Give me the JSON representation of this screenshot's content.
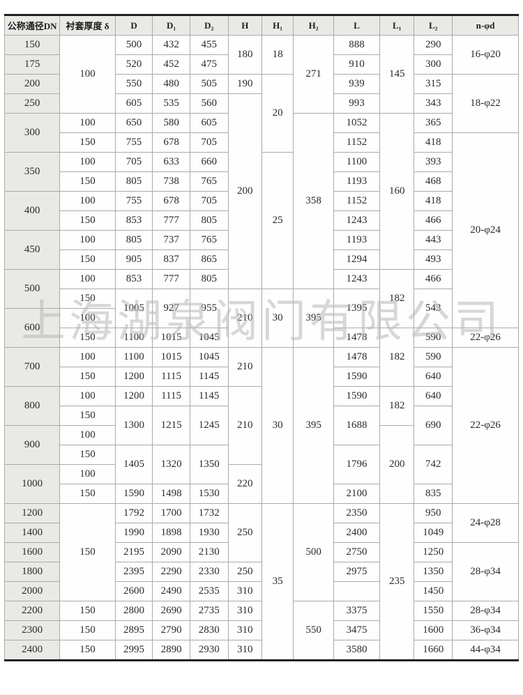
{
  "watermark": "上海湖泉阀门有限公司",
  "table": {
    "columns": [
      "公称通径DN",
      "衬套厚度 δ",
      "D",
      "D₁",
      "D₂",
      "H",
      "H₁",
      "H₂",
      "L",
      "L₁",
      "L₂",
      "n-φd"
    ],
    "rows": [
      [
        [
          "150",
          1
        ],
        [
          "100",
          4
        ],
        [
          "500",
          1
        ],
        [
          "432",
          1
        ],
        [
          "455",
          1
        ],
        [
          "180",
          2
        ],
        [
          "18",
          2
        ],
        [
          "271",
          4
        ],
        [
          "888",
          1
        ],
        [
          "145",
          4
        ],
        [
          "290",
          1
        ],
        [
          "16-φ20",
          2
        ]
      ],
      [
        [
          "175",
          1
        ],
        null,
        [
          "520",
          1
        ],
        [
          "452",
          1
        ],
        [
          "475",
          1
        ],
        null,
        null,
        null,
        [
          "910",
          1
        ],
        null,
        [
          "300",
          1
        ],
        null
      ],
      [
        [
          "200",
          1
        ],
        null,
        [
          "550",
          1
        ],
        [
          "480",
          1
        ],
        [
          "505",
          1
        ],
        [
          "190",
          1
        ],
        [
          "20",
          4
        ],
        null,
        [
          "939",
          1
        ],
        null,
        [
          "315",
          1
        ],
        [
          "18-φ22",
          3
        ]
      ],
      [
        [
          "250",
          1
        ],
        null,
        [
          "605",
          1
        ],
        [
          "535",
          1
        ],
        [
          "560",
          1
        ],
        [
          "200",
          10
        ],
        null,
        null,
        [
          "993",
          1
        ],
        null,
        [
          "343",
          1
        ],
        null
      ],
      [
        [
          "300",
          2
        ],
        [
          "100",
          1
        ],
        [
          "650",
          1
        ],
        [
          "580",
          1
        ],
        [
          "605",
          1
        ],
        null,
        null,
        [
          "358",
          9
        ],
        [
          "1052",
          1
        ],
        [
          "160",
          8
        ],
        [
          "365",
          1
        ],
        null
      ],
      [
        null,
        [
          "150",
          1
        ],
        [
          "755",
          1
        ],
        [
          "678",
          1
        ],
        [
          "705",
          1
        ],
        null,
        null,
        null,
        [
          "1152",
          1
        ],
        null,
        [
          "418",
          1
        ],
        [
          "20-φ24",
          10
        ]
      ],
      [
        [
          "350",
          2
        ],
        [
          "100",
          1
        ],
        [
          "705",
          1
        ],
        [
          "633",
          1
        ],
        [
          "660",
          1
        ],
        null,
        [
          "25",
          7
        ],
        null,
        [
          "1100",
          1
        ],
        null,
        [
          "393",
          1
        ],
        null
      ],
      [
        null,
        [
          "150",
          1
        ],
        [
          "805",
          1
        ],
        [
          "738",
          1
        ],
        [
          "765",
          1
        ],
        null,
        null,
        null,
        [
          "1193",
          1
        ],
        null,
        [
          "468",
          1
        ],
        null
      ],
      [
        [
          "400",
          2
        ],
        [
          "100",
          1
        ],
        [
          "755",
          1
        ],
        [
          "678",
          1
        ],
        [
          "705",
          1
        ],
        null,
        null,
        null,
        [
          "1152",
          1
        ],
        null,
        [
          "418",
          1
        ],
        null
      ],
      [
        null,
        [
          "150",
          1
        ],
        [
          "853",
          1
        ],
        [
          "777",
          1
        ],
        [
          "805",
          1
        ],
        null,
        null,
        null,
        [
          "1243",
          1
        ],
        null,
        [
          "466",
          1
        ],
        null
      ],
      [
        [
          "450",
          2
        ],
        [
          "100",
          1
        ],
        [
          "805",
          1
        ],
        [
          "737",
          1
        ],
        [
          "765",
          1
        ],
        null,
        null,
        null,
        [
          "1193",
          1
        ],
        null,
        [
          "443",
          1
        ],
        null
      ],
      [
        null,
        [
          "150",
          1
        ],
        [
          "905",
          1
        ],
        [
          "837",
          1
        ],
        [
          "865",
          1
        ],
        null,
        null,
        null,
        [
          "1294",
          1
        ],
        null,
        [
          "493",
          1
        ],
        null
      ],
      [
        [
          "500",
          2
        ],
        [
          "100",
          1
        ],
        [
          "853",
          1
        ],
        [
          "777",
          1
        ],
        [
          "805",
          1
        ],
        null,
        null,
        null,
        [
          "1243",
          1
        ],
        [
          "182",
          3
        ],
        [
          "466",
          1
        ],
        null
      ],
      [
        null,
        [
          "150",
          1
        ],
        [
          "1005",
          2
        ],
        [
          "927",
          2
        ],
        [
          "955",
          2
        ],
        [
          "210",
          3
        ],
        [
          "30",
          3
        ],
        [
          "395",
          3
        ],
        [
          "1395",
          2
        ],
        null,
        [
          "543",
          2
        ],
        null
      ],
      [
        [
          "600",
          2
        ],
        [
          "100",
          1
        ],
        null,
        null,
        null,
        null,
        null,
        null,
        null,
        null,
        null,
        null
      ],
      [
        null,
        [
          "150",
          1
        ],
        [
          "1100",
          1
        ],
        [
          "1015",
          1
        ],
        [
          "1045",
          1
        ],
        null,
        null,
        null,
        [
          "1478",
          1
        ],
        [
          "182",
          3
        ],
        [
          "590",
          1
        ],
        [
          "22-φ26",
          1
        ]
      ],
      [
        [
          "700",
          2
        ],
        [
          "100",
          1
        ],
        [
          "1100",
          1
        ],
        [
          "1015",
          1
        ],
        [
          "1045",
          1
        ],
        [
          "210",
          2
        ],
        [
          "30",
          8
        ],
        [
          "395",
          8
        ],
        [
          "1478",
          1
        ],
        null,
        [
          "590",
          1
        ],
        [
          "22-φ26",
          8
        ]
      ],
      [
        null,
        [
          "150",
          1
        ],
        [
          "1200",
          1
        ],
        [
          "1115",
          1
        ],
        [
          "1145",
          1
        ],
        null,
        null,
        null,
        [
          "1590",
          1
        ],
        null,
        [
          "640",
          1
        ],
        null
      ],
      [
        [
          "800",
          2
        ],
        [
          "100",
          1
        ],
        [
          "1200",
          1
        ],
        [
          "1115",
          1
        ],
        [
          "1145",
          1
        ],
        [
          "210",
          4
        ],
        null,
        null,
        [
          "1590",
          1
        ],
        [
          "182",
          2
        ],
        [
          "640",
          1
        ],
        null
      ],
      [
        null,
        [
          "150",
          1
        ],
        [
          "1300",
          2
        ],
        [
          "1215",
          2
        ],
        [
          "1245",
          2
        ],
        null,
        null,
        null,
        [
          "1688",
          2
        ],
        null,
        [
          "690",
          2
        ],
        null
      ],
      [
        [
          "900",
          2
        ],
        [
          "100",
          1
        ],
        null,
        null,
        null,
        null,
        null,
        null,
        null,
        [
          "200",
          4
        ],
        null,
        null
      ],
      [
        null,
        [
          "150",
          1
        ],
        [
          "1405",
          2
        ],
        [
          "1320",
          2
        ],
        [
          "1350",
          2
        ],
        null,
        null,
        null,
        [
          "1796",
          2
        ],
        null,
        [
          "742",
          2
        ],
        null
      ],
      [
        [
          "1000",
          2
        ],
        [
          "100",
          1
        ],
        null,
        null,
        null,
        [
          "220",
          2
        ],
        null,
        null,
        null,
        null,
        null,
        null
      ],
      [
        null,
        [
          "150",
          1
        ],
        [
          "1590",
          1
        ],
        [
          "1498",
          1
        ],
        [
          "1530",
          1
        ],
        null,
        null,
        null,
        [
          "2100",
          1
        ],
        null,
        [
          "835",
          1
        ],
        null
      ],
      [
        [
          "1200",
          1
        ],
        [
          "150",
          5
        ],
        [
          "1792",
          1
        ],
        [
          "1700",
          1
        ],
        [
          "1732",
          1
        ],
        [
          "250",
          3
        ],
        [
          "35",
          8
        ],
        [
          "500",
          5
        ],
        [
          "2350",
          1
        ],
        [
          "235",
          8
        ],
        [
          "950",
          1
        ],
        [
          "24-φ28",
          2
        ]
      ],
      [
        [
          "1400",
          1
        ],
        null,
        [
          "1990",
          1
        ],
        [
          "1898",
          1
        ],
        [
          "1930",
          1
        ],
        null,
        null,
        null,
        [
          "2400",
          1
        ],
        null,
        [
          "1049",
          1
        ],
        null
      ],
      [
        [
          "1600",
          1
        ],
        null,
        [
          "2195",
          1
        ],
        [
          "2090",
          1
        ],
        [
          "2130",
          1
        ],
        null,
        null,
        null,
        [
          "2750",
          1
        ],
        null,
        [
          "1250",
          1
        ],
        [
          "28-φ34",
          3
        ]
      ],
      [
        [
          "1800",
          1
        ],
        null,
        [
          "2395",
          1
        ],
        [
          "2290",
          1
        ],
        [
          "2330",
          1
        ],
        [
          "250",
          1
        ],
        null,
        null,
        [
          "2975",
          1
        ],
        null,
        [
          "1350",
          1
        ],
        null
      ],
      [
        [
          "2000",
          1
        ],
        null,
        [
          "2600",
          1
        ],
        [
          "2490",
          1
        ],
        [
          "2535",
          1
        ],
        [
          "310",
          1
        ],
        null,
        null,
        [
          "",
          1
        ],
        null,
        [
          "1450",
          1
        ],
        null
      ],
      [
        [
          "2200",
          1
        ],
        [
          "150",
          1
        ],
        [
          "2800",
          1
        ],
        [
          "2690",
          1
        ],
        [
          "2735",
          1
        ],
        [
          "310",
          1
        ],
        null,
        [
          "550",
          3
        ],
        [
          "3375",
          1
        ],
        null,
        [
          "1550",
          1
        ],
        [
          "28-φ34",
          1
        ]
      ],
      [
        [
          "2300",
          1
        ],
        [
          "150",
          1
        ],
        [
          "2895",
          1
        ],
        [
          "2790",
          1
        ],
        [
          "2830",
          1
        ],
        [
          "310",
          1
        ],
        null,
        null,
        [
          "3475",
          1
        ],
        null,
        [
          "1600",
          1
        ],
        [
          "36-φ34",
          1
        ]
      ],
      [
        [
          "2400",
          1
        ],
        [
          "150",
          1
        ],
        [
          "2995",
          1
        ],
        [
          "2890",
          1
        ],
        [
          "2930",
          1
        ],
        [
          "310",
          1
        ],
        null,
        null,
        [
          "3580",
          1
        ],
        null,
        [
          "1660",
          1
        ],
        [
          "44-φ34",
          1
        ]
      ]
    ]
  }
}
